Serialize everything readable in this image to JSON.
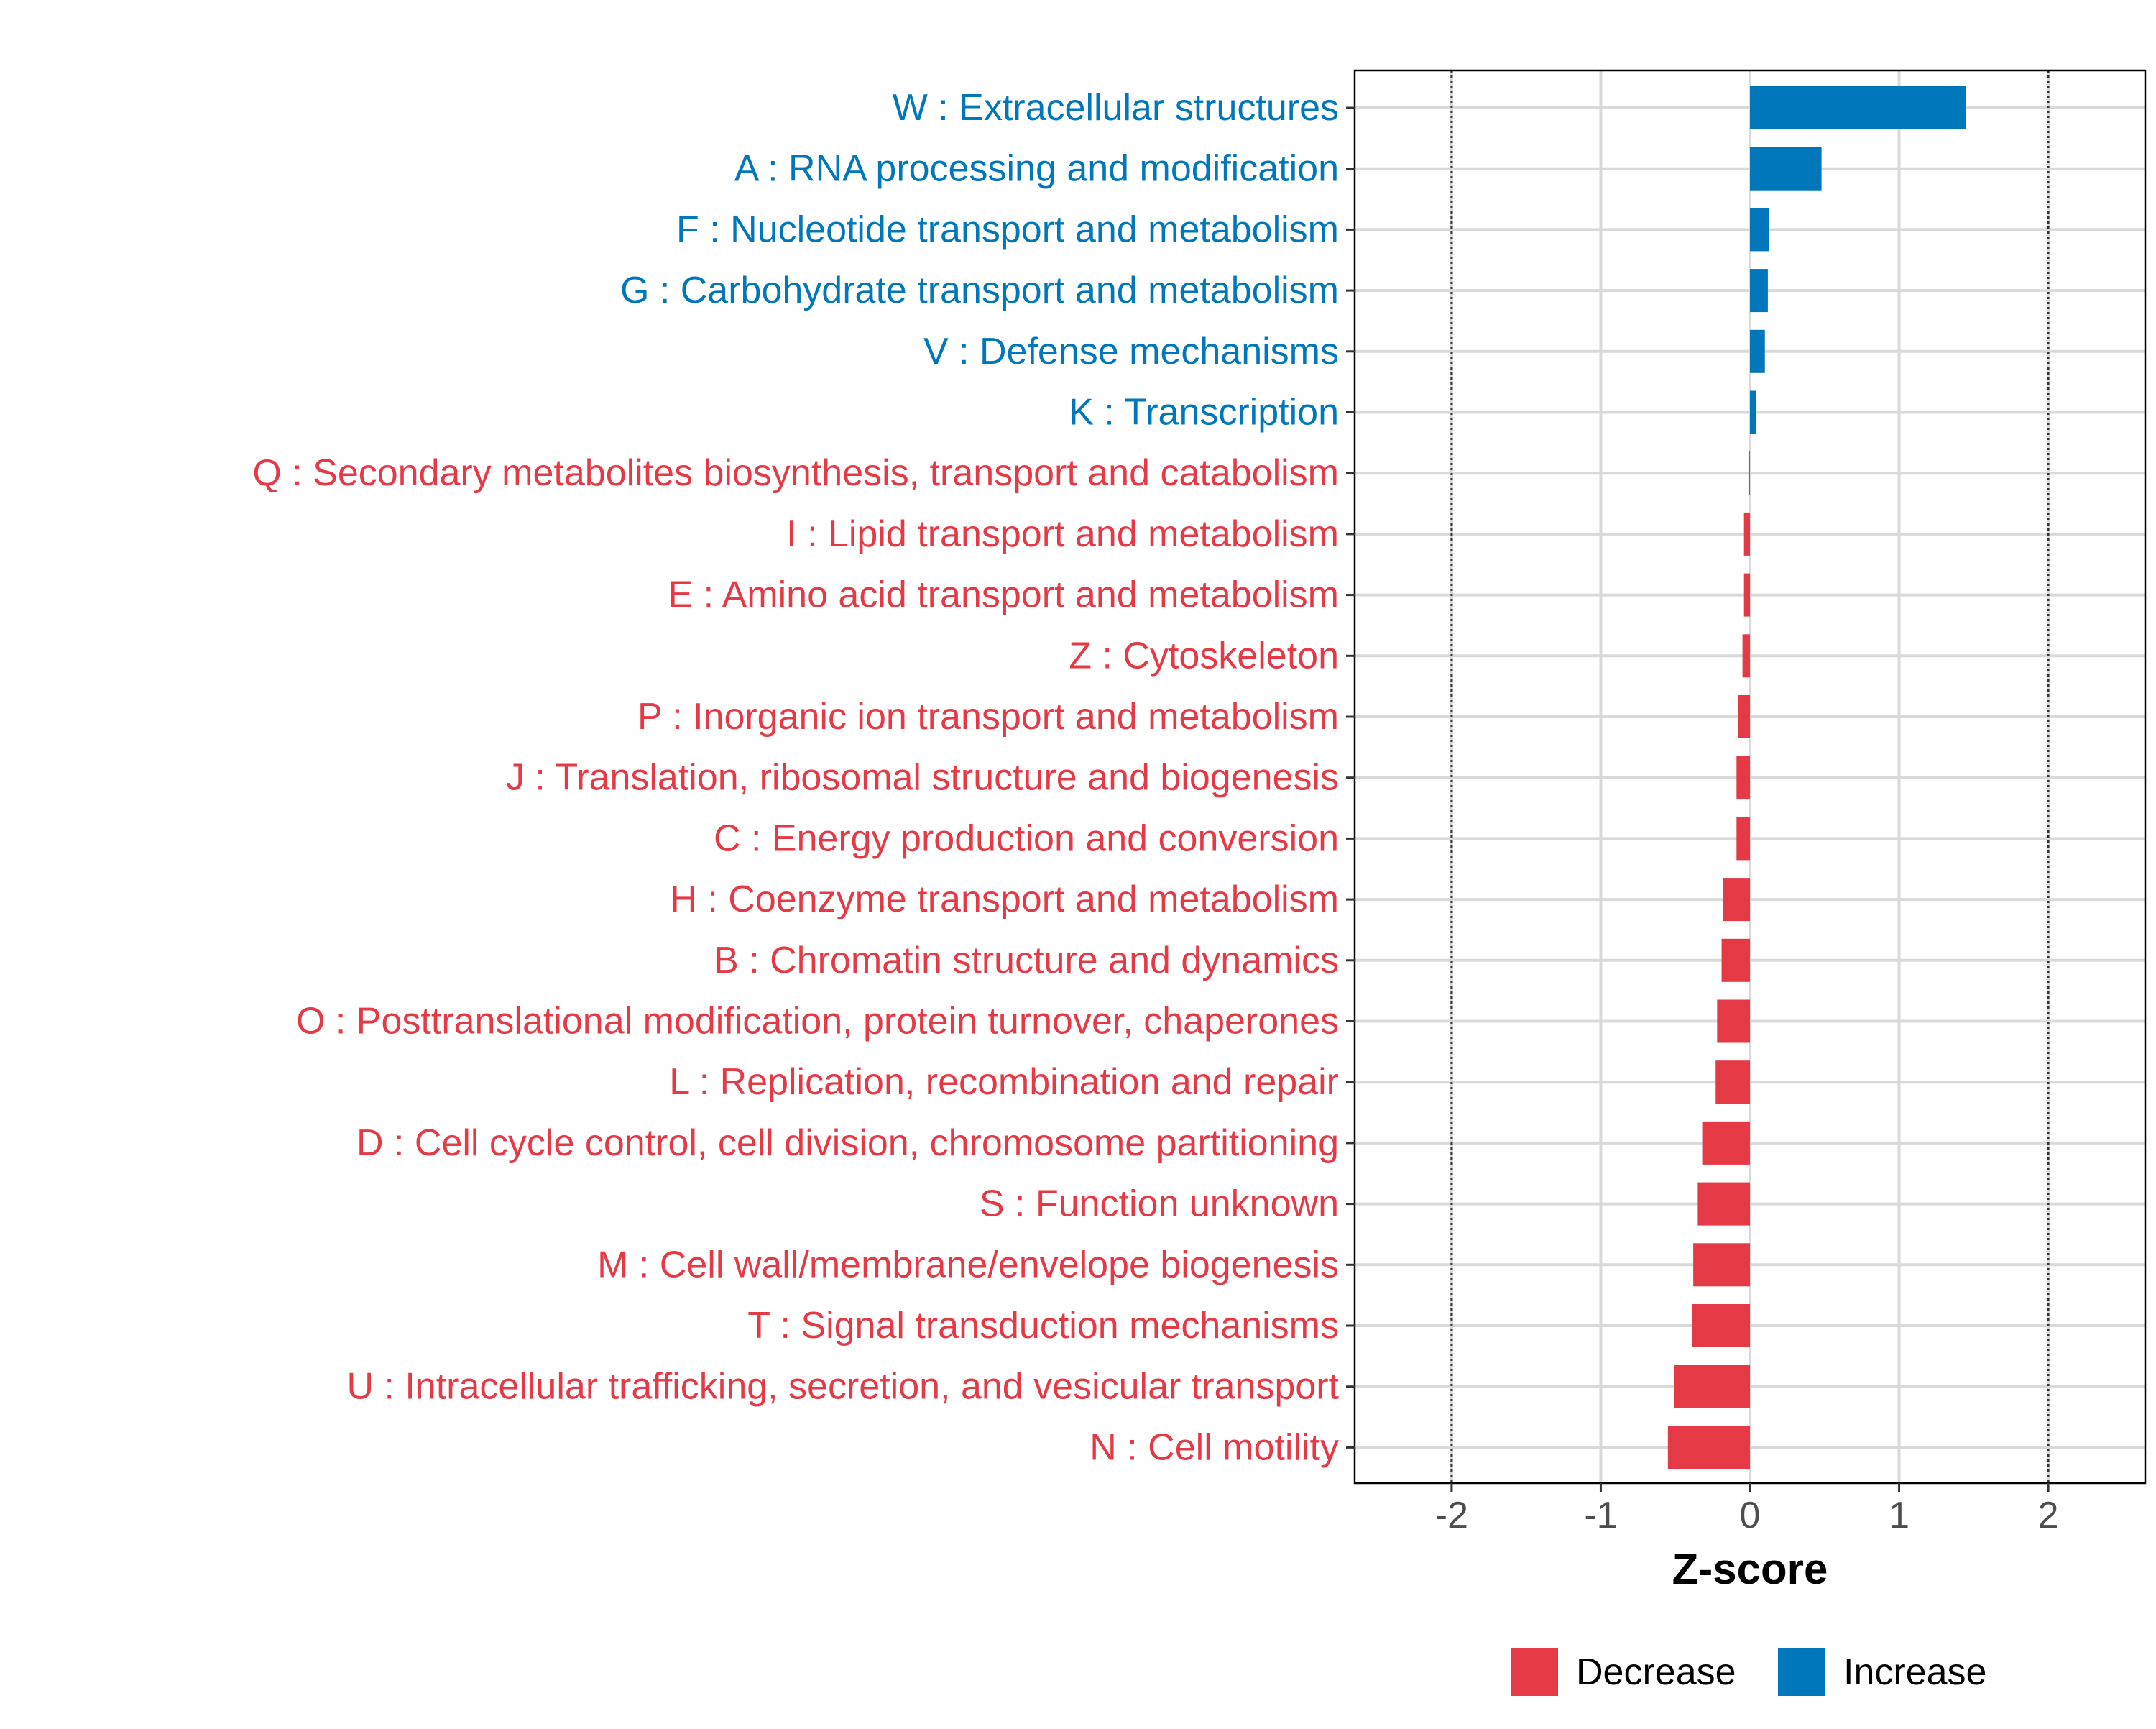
{
  "chart_data": {
    "type": "bar",
    "orientation": "horizontal",
    "title": "",
    "xlabel": "Z-score",
    "ylabel": "",
    "xlim": [
      -2.65,
      2.65
    ],
    "x_ticks": [
      -2,
      -1,
      0,
      1,
      2
    ],
    "x_tick_labels": [
      "-2",
      "-1",
      "0",
      "1",
      "2"
    ],
    "reference_lines": [
      -2,
      2
    ],
    "grid": true,
    "colors": {
      "Decrease": "#e63946",
      "Increase": "#0077bb",
      "grid": "#d9d9d9",
      "axis": "#000000",
      "reference_line": "#333333",
      "tick_text": "#4d4d4d"
    },
    "categories": [
      "W : Extracellular structures",
      "A : RNA processing and modification",
      "F : Nucleotide transport and metabolism",
      "G : Carbohydrate transport and metabolism",
      "V : Defense mechanisms",
      "K : Transcription",
      "Q : Secondary metabolites biosynthesis, transport and catabolism",
      "I : Lipid transport and metabolism",
      "E : Amino acid transport and metabolism",
      "Z : Cytoskeleton",
      "P : Inorganic ion transport and metabolism",
      "J : Translation, ribosomal structure and biogenesis",
      "C : Energy production and conversion",
      "H : Coenzyme transport and metabolism",
      "B : Chromatin structure and dynamics",
      "O : Posttranslational modification, protein turnover, chaperones",
      "L : Replication, recombination and repair",
      "D : Cell cycle control, cell division, chromosome partitioning",
      "S : Function unknown",
      "M : Cell wall/membrane/envelope biogenesis",
      "T : Signal transduction mechanisms",
      "U : Intracellular trafficking, secretion, and vesicular transport",
      "N : Cell motility"
    ],
    "values": [
      1.45,
      0.48,
      0.13,
      0.12,
      0.1,
      0.04,
      -0.01,
      -0.04,
      -0.04,
      -0.05,
      -0.08,
      -0.09,
      -0.09,
      -0.18,
      -0.19,
      -0.22,
      -0.23,
      -0.32,
      -0.35,
      -0.38,
      -0.39,
      -0.51,
      -0.55
    ],
    "groups": [
      "Increase",
      "Increase",
      "Increase",
      "Increase",
      "Increase",
      "Increase",
      "Decrease",
      "Decrease",
      "Decrease",
      "Decrease",
      "Decrease",
      "Decrease",
      "Decrease",
      "Decrease",
      "Decrease",
      "Decrease",
      "Decrease",
      "Decrease",
      "Decrease",
      "Decrease",
      "Decrease",
      "Decrease",
      "Decrease"
    ],
    "legend": {
      "position": "bottom",
      "entries": [
        "Decrease",
        "Increase"
      ]
    }
  }
}
